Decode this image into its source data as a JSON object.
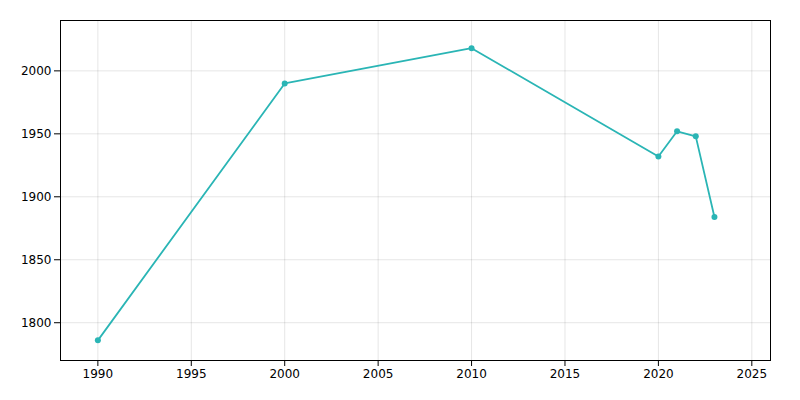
{
  "chart_data": {
    "type": "line",
    "x": [
      1990,
      2000,
      2010,
      2020,
      2021,
      2022,
      2023
    ],
    "values": [
      1786,
      1990,
      2018,
      1932,
      1952,
      1948,
      1884
    ],
    "color": "#2ab5b5",
    "marker": "circle",
    "xlim": [
      1988,
      2026
    ],
    "ylim": [
      1770,
      2040
    ],
    "xticks": [
      1990,
      1995,
      2000,
      2005,
      2010,
      2015,
      2020,
      2025
    ],
    "yticks": [
      1800,
      1850,
      1900,
      1950,
      2000
    ],
    "grid": true
  }
}
